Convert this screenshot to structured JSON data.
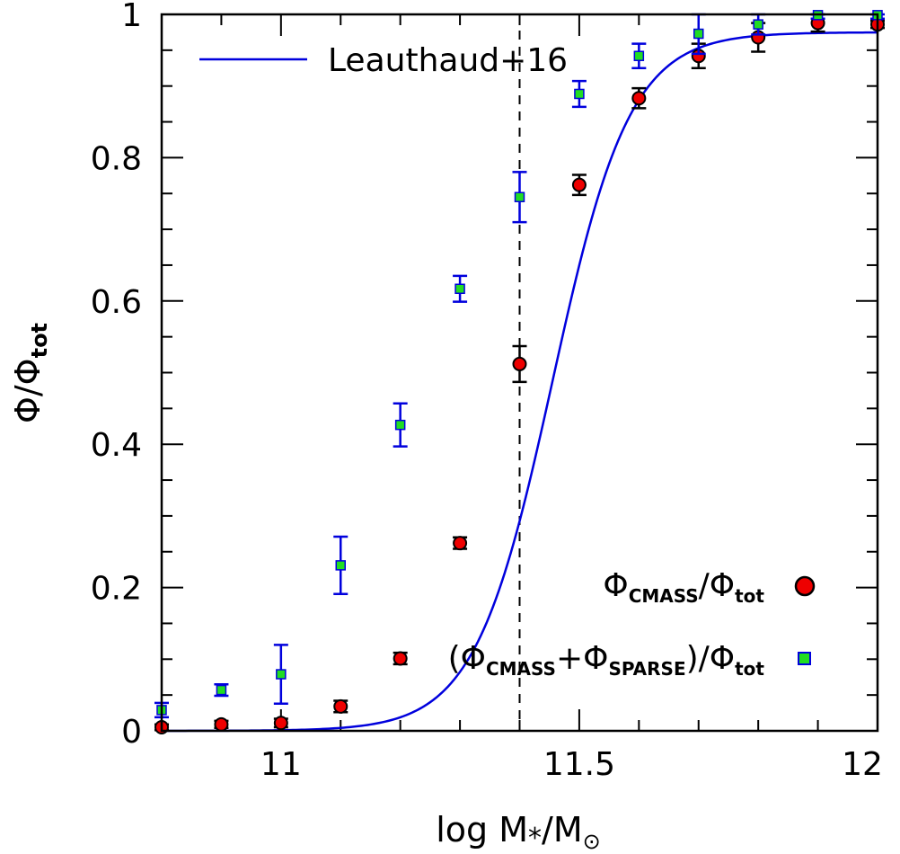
{
  "chart_data": {
    "type": "scatter",
    "xlabel": "log M",
    "xlabel_sub": "*",
    "xlabel_denom": "M",
    "xlabel_denom_sub": "⊙",
    "ylabel": "Φ/Φ",
    "ylabel_sub": "tot",
    "xlim": [
      10.8,
      12.0
    ],
    "ylim": [
      0,
      1
    ],
    "x_ticks": [
      "11",
      "11.5",
      "12"
    ],
    "y_ticks": [
      "0",
      "0.2",
      "0.4",
      "0.6",
      "0.8",
      "1"
    ],
    "vertical_line_x": 11.4,
    "series": [
      {
        "name": "Leauthaud+16",
        "type": "line",
        "color": "#0000dd",
        "model": "logistic",
        "center": 11.455,
        "width": 0.065,
        "max": 0.975
      },
      {
        "name": "ΦCMASS/Φtot",
        "type": "scatter",
        "marker": "circle",
        "color": "#ee0000",
        "errorbar_color": "#000000",
        "points": [
          {
            "x": 10.8,
            "y": 0.005,
            "err": 0.004
          },
          {
            "x": 10.9,
            "y": 0.009,
            "err": 0.005
          },
          {
            "x": 11.0,
            "y": 0.011,
            "err": 0.006
          },
          {
            "x": 11.1,
            "y": 0.034,
            "err": 0.008
          },
          {
            "x": 11.2,
            "y": 0.101,
            "err": 0.008
          },
          {
            "x": 11.3,
            "y": 0.262,
            "err": 0.008
          },
          {
            "x": 11.4,
            "y": 0.512,
            "err": 0.025
          },
          {
            "x": 11.5,
            "y": 0.762,
            "err": 0.014
          },
          {
            "x": 11.6,
            "y": 0.883,
            "err": 0.014
          },
          {
            "x": 11.7,
            "y": 0.942,
            "err": 0.017
          },
          {
            "x": 11.8,
            "y": 0.968,
            "err": 0.02
          },
          {
            "x": 11.9,
            "y": 0.988,
            "err": 0.012
          },
          {
            "x": 12.0,
            "y": 0.986,
            "err": 0.005
          }
        ]
      },
      {
        "name": "(ΦCMASS+ΦSPARSE)/Φtot",
        "type": "scatter",
        "marker": "square",
        "color": "#22dd22",
        "errorbar_color": "#0000dd",
        "points": [
          {
            "x": 10.8,
            "y": 0.029,
            "err": 0.01
          },
          {
            "x": 10.9,
            "y": 0.057,
            "err": 0.008
          },
          {
            "x": 11.0,
            "y": 0.079,
            "err": 0.041
          },
          {
            "x": 11.1,
            "y": 0.231,
            "err": 0.04
          },
          {
            "x": 11.2,
            "y": 0.427,
            "err": 0.03
          },
          {
            "x": 11.3,
            "y": 0.617,
            "err": 0.018
          },
          {
            "x": 11.4,
            "y": 0.745,
            "err": 0.035
          },
          {
            "x": 11.5,
            "y": 0.889,
            "err": 0.018
          },
          {
            "x": 11.6,
            "y": 0.942,
            "err": 0.017
          },
          {
            "x": 11.7,
            "y": 0.973,
            "err": 0.028
          },
          {
            "x": 11.8,
            "y": 0.986,
            "err": 0.014
          },
          {
            "x": 11.9,
            "y": 0.999,
            "err": 0.005
          },
          {
            "x": 12.0,
            "y": 0.999,
            "err": 0.005
          }
        ]
      }
    ],
    "legend": {
      "line_label": "Leauthaud+16",
      "circle_label": {
        "open": "Φ",
        "sub1": "CMASS",
        "mid": "/Φ",
        "sub2": "tot"
      },
      "square_label": {
        "open": "(Φ",
        "sub1": "CMASS",
        "mid": "+Φ",
        "sub2": "SPARSE",
        "close": ")/Φ",
        "sub3": "tot"
      },
      "placement": "line: top-left; markers: bottom-right"
    }
  }
}
